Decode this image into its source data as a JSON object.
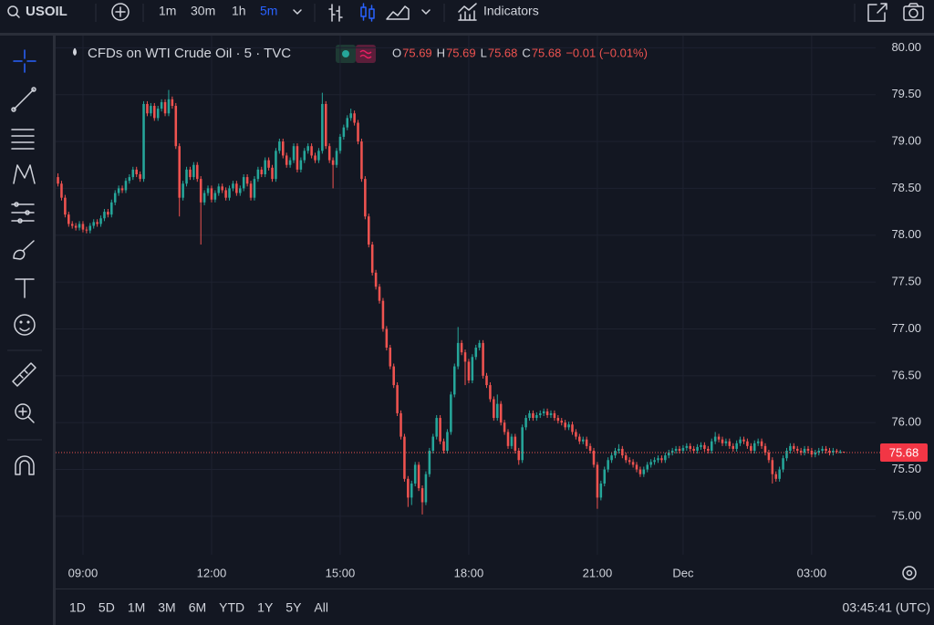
{
  "toolbar": {
    "symbol": "USOIL",
    "intervals": [
      "1m",
      "30m",
      "1h",
      "5m"
    ],
    "indicators": "Indicators"
  },
  "legend": {
    "title": "CFDs on WTI Crude Oil · 5 · TVC",
    "ohlc": [
      [
        "O",
        "75.69"
      ],
      [
        "H",
        "75.69"
      ],
      [
        "L",
        "75.68"
      ],
      [
        "C",
        "75.68"
      ]
    ],
    "change": "−0.01 (−0.01%)"
  },
  "chart_data": {
    "type": "candlestick",
    "up_color": "#26a69a",
    "down_color": "#ef5350",
    "grid": true,
    "xlim": [
      -0.65,
      228.9
    ],
    "ylim": [
      74.59,
      80.13
    ],
    "yticks": [
      {
        "value": 75,
        "label": "75.00"
      },
      {
        "value": 75.5,
        "label": "75.50"
      },
      {
        "value": 76,
        "label": "76.00"
      },
      {
        "value": 76.5,
        "label": "76.50"
      },
      {
        "value": 77,
        "label": "77.00"
      },
      {
        "value": 77.5,
        "label": "77.50"
      },
      {
        "value": 78,
        "label": "78.00"
      },
      {
        "value": 78.5,
        "label": "78.50"
      },
      {
        "value": 79,
        "label": "79.00"
      },
      {
        "value": 79.5,
        "label": "79.50"
      },
      {
        "value": 80,
        "label": "80.00"
      }
    ],
    "xticks": [
      {
        "value": 7,
        "label": "09:00"
      },
      {
        "value": 43,
        "label": "12:00"
      },
      {
        "value": 79,
        "label": "15:00"
      },
      {
        "value": 115,
        "label": "18:00"
      },
      {
        "value": 151,
        "label": "21:00"
      },
      {
        "value": 175,
        "label": "Dec"
      },
      {
        "value": 211,
        "label": "03:00"
      }
    ],
    "last_price": 75.68,
    "candles": [
      [
        78.62,
        78.66,
        78.52,
        78.55
      ],
      [
        78.55,
        78.58,
        78.37,
        78.4
      ],
      [
        78.4,
        78.43,
        78.19,
        78.22
      ],
      [
        78.22,
        78.25,
        78.09,
        78.12
      ],
      [
        78.12,
        78.15,
        78.07,
        78.1
      ],
      [
        78.1,
        78.13,
        78.05,
        78.08
      ],
      [
        78.08,
        78.15,
        78.05,
        78.12
      ],
      [
        78.12,
        78.15,
        78.03,
        78.06
      ],
      [
        78.06,
        78.09,
        78.02,
        78.05
      ],
      [
        78.05,
        78.13,
        78.02,
        78.1
      ],
      [
        78.1,
        78.17,
        78.07,
        78.14
      ],
      [
        78.14,
        78.17,
        78.09,
        78.12
      ],
      [
        78.12,
        78.21,
        78.09,
        78.18
      ],
      [
        78.18,
        78.28,
        78.15,
        78.25
      ],
      [
        78.25,
        78.28,
        78.19,
        78.22
      ],
      [
        78.22,
        78.38,
        78.19,
        78.35
      ],
      [
        78.35,
        78.48,
        78.32,
        78.45
      ],
      [
        78.45,
        78.53,
        78.42,
        78.5
      ],
      [
        78.5,
        78.53,
        78.45,
        78.48
      ],
      [
        78.48,
        78.61,
        78.45,
        78.58
      ],
      [
        78.58,
        78.65,
        78.55,
        78.62
      ],
      [
        78.62,
        78.73,
        78.59,
        78.7
      ],
      [
        78.7,
        78.73,
        78.62,
        78.65
      ],
      [
        78.65,
        78.68,
        78.57,
        78.6
      ],
      [
        78.6,
        79.43,
        78.57,
        79.4
      ],
      [
        79.4,
        79.43,
        79.27,
        79.3
      ],
      [
        79.3,
        79.41,
        79.27,
        79.38
      ],
      [
        79.38,
        79.41,
        79.22,
        79.25
      ],
      [
        79.25,
        79.38,
        79.22,
        79.35
      ],
      [
        79.35,
        79.45,
        79.32,
        79.42
      ],
      [
        79.42,
        79.45,
        79.27,
        79.3
      ],
      [
        79.3,
        79.55,
        79.27,
        79.45
      ],
      [
        79.45,
        79.48,
        79.35,
        79.38
      ],
      [
        79.38,
        79.41,
        78.92,
        78.95
      ],
      [
        78.95,
        78.98,
        78.2,
        78.4
      ],
      [
        78.4,
        78.58,
        78.37,
        78.55
      ],
      [
        78.55,
        78.73,
        78.52,
        78.7
      ],
      [
        78.7,
        78.73,
        78.59,
        78.62
      ],
      [
        78.62,
        78.78,
        78.59,
        78.75
      ],
      [
        78.75,
        78.78,
        78.57,
        78.6
      ],
      [
        78.6,
        78.63,
        77.9,
        78.35
      ],
      [
        78.35,
        78.48,
        78.32,
        78.45
      ],
      [
        78.45,
        78.53,
        78.42,
        78.5
      ],
      [
        78.5,
        78.53,
        78.35,
        78.38
      ],
      [
        78.38,
        78.48,
        78.35,
        78.45
      ],
      [
        78.45,
        78.55,
        78.42,
        78.52
      ],
      [
        78.52,
        78.55,
        78.45,
        78.48
      ],
      [
        78.48,
        78.51,
        78.37,
        78.4
      ],
      [
        78.4,
        78.53,
        78.37,
        78.5
      ],
      [
        78.5,
        78.58,
        78.47,
        78.55
      ],
      [
        78.55,
        78.58,
        78.42,
        78.45
      ],
      [
        78.45,
        78.53,
        78.42,
        78.5
      ],
      [
        78.5,
        78.65,
        78.47,
        78.62
      ],
      [
        78.62,
        78.65,
        78.52,
        78.55
      ],
      [
        78.55,
        78.58,
        78.37,
        78.4
      ],
      [
        78.4,
        78.63,
        78.37,
        78.6
      ],
      [
        78.6,
        78.73,
        78.57,
        78.7
      ],
      [
        78.7,
        78.73,
        78.62,
        78.65
      ],
      [
        78.65,
        78.83,
        78.62,
        78.8
      ],
      [
        78.8,
        78.83,
        78.69,
        78.72
      ],
      [
        78.72,
        78.75,
        78.57,
        78.6
      ],
      [
        78.6,
        78.93,
        78.57,
        78.9
      ],
      [
        78.9,
        79.03,
        78.87,
        79.0
      ],
      [
        79.0,
        79.03,
        78.82,
        78.85
      ],
      [
        78.85,
        78.88,
        78.72,
        78.75
      ],
      [
        78.75,
        78.83,
        78.72,
        78.8
      ],
      [
        78.8,
        78.98,
        78.77,
        78.95
      ],
      [
        78.95,
        78.98,
        78.67,
        78.7
      ],
      [
        78.7,
        78.83,
        78.67,
        78.8
      ],
      [
        78.8,
        78.93,
        78.77,
        78.9
      ],
      [
        78.9,
        78.98,
        78.87,
        78.95
      ],
      [
        78.95,
        78.98,
        78.82,
        78.85
      ],
      [
        78.85,
        78.88,
        78.77,
        78.8
      ],
      [
        78.8,
        78.93,
        78.77,
        78.9
      ],
      [
        78.9,
        79.52,
        78.87,
        79.4
      ],
      [
        79.4,
        79.43,
        78.92,
        78.95
      ],
      [
        78.95,
        78.98,
        78.77,
        78.8
      ],
      [
        78.8,
        78.83,
        78.5,
        78.75
      ],
      [
        78.75,
        78.93,
        78.72,
        78.9
      ],
      [
        78.9,
        79.08,
        78.87,
        79.05
      ],
      [
        79.05,
        79.18,
        79.02,
        79.15
      ],
      [
        79.15,
        79.28,
        79.12,
        79.25
      ],
      [
        79.25,
        79.35,
        79.22,
        79.3
      ],
      [
        79.3,
        79.33,
        79.17,
        79.2
      ],
      [
        79.2,
        79.23,
        78.97,
        79.0
      ],
      [
        79.0,
        79.03,
        78.57,
        78.6
      ],
      [
        78.6,
        78.63,
        78.17,
        78.2
      ],
      [
        78.2,
        78.23,
        77.87,
        77.9
      ],
      [
        77.9,
        77.93,
        77.57,
        77.6
      ],
      [
        77.6,
        77.63,
        77.42,
        77.45
      ],
      [
        77.45,
        77.48,
        77.27,
        77.3
      ],
      [
        77.3,
        77.33,
        76.97,
        77.0
      ],
      [
        77.0,
        77.03,
        76.77,
        76.8
      ],
      [
        76.8,
        76.83,
        76.57,
        76.6
      ],
      [
        76.6,
        76.63,
        76.37,
        76.4
      ],
      [
        76.4,
        76.43,
        76.07,
        76.1
      ],
      [
        76.1,
        76.13,
        75.82,
        75.85
      ],
      [
        75.85,
        75.88,
        75.37,
        75.4
      ],
      [
        75.4,
        75.43,
        75.1,
        75.2
      ],
      [
        75.2,
        75.38,
        75.12,
        75.35
      ],
      [
        75.35,
        75.58,
        75.32,
        75.55
      ],
      [
        75.55,
        75.58,
        75.27,
        75.3
      ],
      [
        75.3,
        75.33,
        75.02,
        75.15
      ],
      [
        75.15,
        75.48,
        75.12,
        75.45
      ],
      [
        75.45,
        75.73,
        75.42,
        75.7
      ],
      [
        75.7,
        75.88,
        75.67,
        75.85
      ],
      [
        75.85,
        76.08,
        75.82,
        76.05
      ],
      [
        76.05,
        76.08,
        75.77,
        75.8
      ],
      [
        75.8,
        75.83,
        75.67,
        75.7
      ],
      [
        75.7,
        75.93,
        75.67,
        75.9
      ],
      [
        75.9,
        76.33,
        75.87,
        76.3
      ],
      [
        76.3,
        76.63,
        76.27,
        76.6
      ],
      [
        76.6,
        77.02,
        76.57,
        76.85
      ],
      [
        76.85,
        76.88,
        76.72,
        76.75
      ],
      [
        76.75,
        76.78,
        76.4,
        76.65
      ],
      [
        76.65,
        76.68,
        76.42,
        76.45
      ],
      [
        76.45,
        76.73,
        76.42,
        76.7
      ],
      [
        76.7,
        76.83,
        76.67,
        76.8
      ],
      [
        76.8,
        76.88,
        76.77,
        76.85
      ],
      [
        76.85,
        76.88,
        76.47,
        76.5
      ],
      [
        76.5,
        76.53,
        76.37,
        76.4
      ],
      [
        76.4,
        76.43,
        76.22,
        76.25
      ],
      [
        76.25,
        76.28,
        76.02,
        76.05
      ],
      [
        76.05,
        76.3,
        76.02,
        76.2
      ],
      [
        76.2,
        76.23,
        75.97,
        76.0
      ],
      [
        76.0,
        76.03,
        75.87,
        75.9
      ],
      [
        75.9,
        75.93,
        75.72,
        75.75
      ],
      [
        75.75,
        75.88,
        75.72,
        75.85
      ],
      [
        75.85,
        75.88,
        75.67,
        75.7
      ],
      [
        75.7,
        75.73,
        75.55,
        75.6
      ],
      [
        75.6,
        75.98,
        75.57,
        75.95
      ],
      [
        75.95,
        76.08,
        75.92,
        76.05
      ],
      [
        76.05,
        76.13,
        76.02,
        76.1
      ],
      [
        76.1,
        76.13,
        76.02,
        76.05
      ],
      [
        76.05,
        76.11,
        76.02,
        76.08
      ],
      [
        76.08,
        76.13,
        76.05,
        76.1
      ],
      [
        76.1,
        76.15,
        76.07,
        76.12
      ],
      [
        76.12,
        76.15,
        76.05,
        76.08
      ],
      [
        76.08,
        76.13,
        76.05,
        76.1
      ],
      [
        76.1,
        76.13,
        76.02,
        76.05
      ],
      [
        76.05,
        76.08,
        75.99,
        76.02
      ],
      [
        76.02,
        76.05,
        75.97,
        76.0
      ],
      [
        76.0,
        76.03,
        75.92,
        75.95
      ],
      [
        75.95,
        76.01,
        75.92,
        75.98
      ],
      [
        75.98,
        76.01,
        75.87,
        75.9
      ],
      [
        75.9,
        75.93,
        75.82,
        75.85
      ],
      [
        75.85,
        75.88,
        75.77,
        75.8
      ],
      [
        75.8,
        75.85,
        75.77,
        75.82
      ],
      [
        75.82,
        75.85,
        75.72,
        75.75
      ],
      [
        75.75,
        75.78,
        75.67,
        75.7
      ],
      [
        75.7,
        75.73,
        75.52,
        75.55
      ],
      [
        75.55,
        75.58,
        75.08,
        75.2
      ],
      [
        75.2,
        75.38,
        75.17,
        75.35
      ],
      [
        75.35,
        75.53,
        75.32,
        75.5
      ],
      [
        75.5,
        75.63,
        75.47,
        75.6
      ],
      [
        75.6,
        75.68,
        75.57,
        75.65
      ],
      [
        75.65,
        75.73,
        75.62,
        75.7
      ],
      [
        75.7,
        75.77,
        75.67,
        75.72
      ],
      [
        75.72,
        75.75,
        75.62,
        75.65
      ],
      [
        75.65,
        75.68,
        75.57,
        75.6
      ],
      [
        75.6,
        75.63,
        75.55,
        75.58
      ],
      [
        75.58,
        75.61,
        75.52,
        75.55
      ],
      [
        75.55,
        75.58,
        75.47,
        75.5
      ],
      [
        75.5,
        75.53,
        75.42,
        75.45
      ],
      [
        75.45,
        75.53,
        75.42,
        75.5
      ],
      [
        75.5,
        75.58,
        75.47,
        75.55
      ],
      [
        75.55,
        75.61,
        75.52,
        75.58
      ],
      [
        75.58,
        75.63,
        75.55,
        75.6
      ],
      [
        75.6,
        75.65,
        75.57,
        75.62
      ],
      [
        75.62,
        75.65,
        75.57,
        75.6
      ],
      [
        75.6,
        75.68,
        75.57,
        75.65
      ],
      [
        75.65,
        75.71,
        75.62,
        75.68
      ],
      [
        75.68,
        75.73,
        75.65,
        75.7
      ],
      [
        75.7,
        75.75,
        75.67,
        75.72
      ],
      [
        75.72,
        75.75,
        75.67,
        75.7
      ],
      [
        75.7,
        75.76,
        75.67,
        75.73
      ],
      [
        75.73,
        75.78,
        75.7,
        75.75
      ],
      [
        75.75,
        75.78,
        75.69,
        75.72
      ],
      [
        75.72,
        75.75,
        75.67,
        75.7
      ],
      [
        75.7,
        75.77,
        75.67,
        75.74
      ],
      [
        75.74,
        75.79,
        75.71,
        75.76
      ],
      [
        75.76,
        75.79,
        75.69,
        75.72
      ],
      [
        75.72,
        75.75,
        75.67,
        75.7
      ],
      [
        75.7,
        75.83,
        75.67,
        75.8
      ],
      [
        75.8,
        75.9,
        75.77,
        75.85
      ],
      [
        75.85,
        75.88,
        75.79,
        75.82
      ],
      [
        75.82,
        75.85,
        75.75,
        75.78
      ],
      [
        75.78,
        75.83,
        75.75,
        75.8
      ],
      [
        75.8,
        75.83,
        75.72,
        75.75
      ],
      [
        75.75,
        75.78,
        75.69,
        75.72
      ],
      [
        75.72,
        75.81,
        75.69,
        75.78
      ],
      [
        75.78,
        75.85,
        75.75,
        75.82
      ],
      [
        75.82,
        75.85,
        75.77,
        75.8
      ],
      [
        75.8,
        75.83,
        75.72,
        75.75
      ],
      [
        75.75,
        75.78,
        75.67,
        75.7
      ],
      [
        75.7,
        75.81,
        75.67,
        75.78
      ],
      [
        75.78,
        75.83,
        75.75,
        75.8
      ],
      [
        75.8,
        75.83,
        75.72,
        75.75
      ],
      [
        75.75,
        75.78,
        75.65,
        75.68
      ],
      [
        75.68,
        75.71,
        75.57,
        75.6
      ],
      [
        75.6,
        75.63,
        75.35,
        75.45
      ],
      [
        75.45,
        75.48,
        75.37,
        75.4
      ],
      [
        75.4,
        75.53,
        75.37,
        75.5
      ],
      [
        75.5,
        75.65,
        75.47,
        75.62
      ],
      [
        75.62,
        75.73,
        75.59,
        75.7
      ],
      [
        75.7,
        75.78,
        75.67,
        75.75
      ],
      [
        75.75,
        75.78,
        75.69,
        75.72
      ],
      [
        75.72,
        75.75,
        75.67,
        75.7
      ],
      [
        75.7,
        75.73,
        75.65,
        75.68
      ],
      [
        75.68,
        75.75,
        75.65,
        75.72
      ],
      [
        75.72,
        75.75,
        75.67,
        75.7
      ],
      [
        75.7,
        75.73,
        75.63,
        75.66
      ],
      [
        75.66,
        75.71,
        75.63,
        75.68
      ],
      [
        75.68,
        75.73,
        75.65,
        75.7
      ],
      [
        75.7,
        75.75,
        75.67,
        75.72
      ],
      [
        75.72,
        75.75,
        75.67,
        75.7
      ],
      [
        75.7,
        75.73,
        75.65,
        75.68
      ],
      [
        75.68,
        75.73,
        75.65,
        75.7
      ],
      [
        75.7,
        75.72,
        75.67,
        75.69
      ],
      [
        75.69,
        75.71,
        75.67,
        75.69
      ],
      [
        75.69,
        75.69,
        75.68,
        75.68
      ]
    ]
  },
  "bottom_bar": {
    "ranges": [
      "1D",
      "5D",
      "1M",
      "3M",
      "6M",
      "YTD",
      "1Y",
      "5Y",
      "All"
    ],
    "clock": "03:45:41 (UTC)"
  }
}
